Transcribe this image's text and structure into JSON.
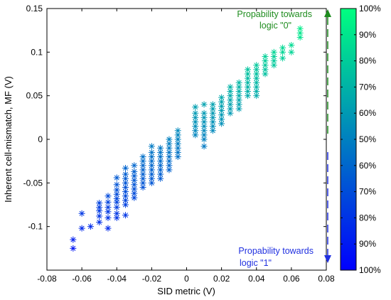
{
  "chart_data": {
    "type": "scatter",
    "title": "",
    "xlabel": "SID metric (V)",
    "ylabel": "Inherent cell-mismatch, MF (V)",
    "xlim": [
      -0.08,
      0.08
    ],
    "ylim": [
      -0.15,
      0.15
    ],
    "x_ticks": [
      "-0.08",
      "-0.06",
      "-0.04",
      "-0.02",
      "0",
      "0.02",
      "0.04",
      "0.06",
      "0.08"
    ],
    "y_ticks": [
      "0.15",
      "0.1",
      "0.05",
      "0",
      "-0.05",
      "-0.1"
    ],
    "marker": "asterisk",
    "grid": false,
    "points": [
      {
        "x": -0.065,
        "y": [
          -0.125,
          -0.115
        ]
      },
      {
        "x": -0.06,
        "y": [
          -0.102,
          -0.085
        ]
      },
      {
        "x": -0.055,
        "y": [
          -0.1
        ]
      },
      {
        "x": -0.05,
        "y": [
          -0.095,
          -0.088,
          -0.082,
          -0.078,
          -0.073
        ]
      },
      {
        "x": -0.045,
        "y": [
          -0.102,
          -0.09,
          -0.083,
          -0.078,
          -0.072,
          -0.065
        ]
      },
      {
        "x": -0.04,
        "y": [
          -0.09,
          -0.085,
          -0.078,
          -0.072,
          -0.068,
          -0.063,
          -0.058,
          -0.052,
          -0.044
        ]
      },
      {
        "x": -0.035,
        "y": [
          -0.087,
          -0.075,
          -0.07,
          -0.065,
          -0.06,
          -0.055,
          -0.05,
          -0.045,
          -0.04,
          -0.033
        ]
      },
      {
        "x": -0.03,
        "y": [
          -0.067,
          -0.062,
          -0.057,
          -0.052,
          -0.047,
          -0.042,
          -0.037,
          -0.03
        ]
      },
      {
        "x": -0.025,
        "y": [
          -0.055,
          -0.05,
          -0.045,
          -0.04,
          -0.035,
          -0.03,
          -0.025,
          -0.02
        ]
      },
      {
        "x": -0.02,
        "y": [
          -0.05,
          -0.045,
          -0.04,
          -0.035,
          -0.03,
          -0.025,
          -0.02,
          -0.015,
          -0.008
        ]
      },
      {
        "x": -0.015,
        "y": [
          -0.045,
          -0.04,
          -0.035,
          -0.03,
          -0.025,
          -0.02,
          -0.015,
          -0.01
        ]
      },
      {
        "x": -0.01,
        "y": [
          -0.035,
          -0.03,
          -0.025,
          -0.02,
          -0.015,
          -0.01,
          -0.005,
          0.0
        ]
      },
      {
        "x": -0.005,
        "y": [
          -0.02,
          -0.015,
          -0.01,
          -0.005,
          0.0,
          0.005,
          0.01
        ]
      },
      {
        "x": 0.005,
        "y": [
          0.005,
          0.01,
          0.015,
          0.02,
          0.025,
          0.03,
          0.037
        ]
      },
      {
        "x": 0.01,
        "y": [
          -0.008,
          0.0,
          0.005,
          0.01,
          0.015,
          0.02,
          0.025,
          0.03,
          0.04
        ]
      },
      {
        "x": 0.015,
        "y": [
          0.01,
          0.015,
          0.02,
          0.025,
          0.03,
          0.035,
          0.04
        ]
      },
      {
        "x": 0.02,
        "y": [
          0.018,
          0.023,
          0.028,
          0.033,
          0.038,
          0.043,
          0.048
        ]
      },
      {
        "x": 0.025,
        "y": [
          0.03,
          0.035,
          0.04,
          0.045,
          0.05,
          0.055,
          0.06
        ]
      },
      {
        "x": 0.03,
        "y": [
          0.035,
          0.04,
          0.045,
          0.05,
          0.055,
          0.06,
          0.065
        ]
      },
      {
        "x": 0.035,
        "y": [
          0.05,
          0.055,
          0.06,
          0.065,
          0.07,
          0.075,
          0.08
        ]
      },
      {
        "x": 0.04,
        "y": [
          0.05,
          0.055,
          0.06,
          0.065,
          0.07,
          0.075,
          0.08,
          0.085
        ]
      },
      {
        "x": 0.045,
        "y": [
          0.075,
          0.08,
          0.085,
          0.09,
          0.095
        ]
      },
      {
        "x": 0.05,
        "y": [
          0.085,
          0.09,
          0.095,
          0.1
        ]
      },
      {
        "x": 0.055,
        "y": [
          0.093,
          0.1,
          0.105
        ]
      },
      {
        "x": 0.06,
        "y": [
          0.1,
          0.108
        ]
      },
      {
        "x": 0.065,
        "y": [
          0.117,
          0.122,
          0.127
        ]
      }
    ],
    "colorbar": {
      "colors": {
        "top": "#00ff80",
        "middle": "#0080c0",
        "bottom": "#0000ff"
      },
      "labels": [
        "100%",
        "90%",
        "80%",
        "70%",
        "60%",
        "50%",
        "60%",
        "70%",
        "80%",
        "90%",
        "100%"
      ]
    },
    "annotations": {
      "top_text_line1": "Propability towards",
      "top_text_line2": "logic \"0\"",
      "top_color": "#1e8c1e",
      "bottom_text_line1": "Propability towards",
      "bottom_text_line2": "logic \"1\"",
      "bottom_color": "#2030e0"
    }
  }
}
